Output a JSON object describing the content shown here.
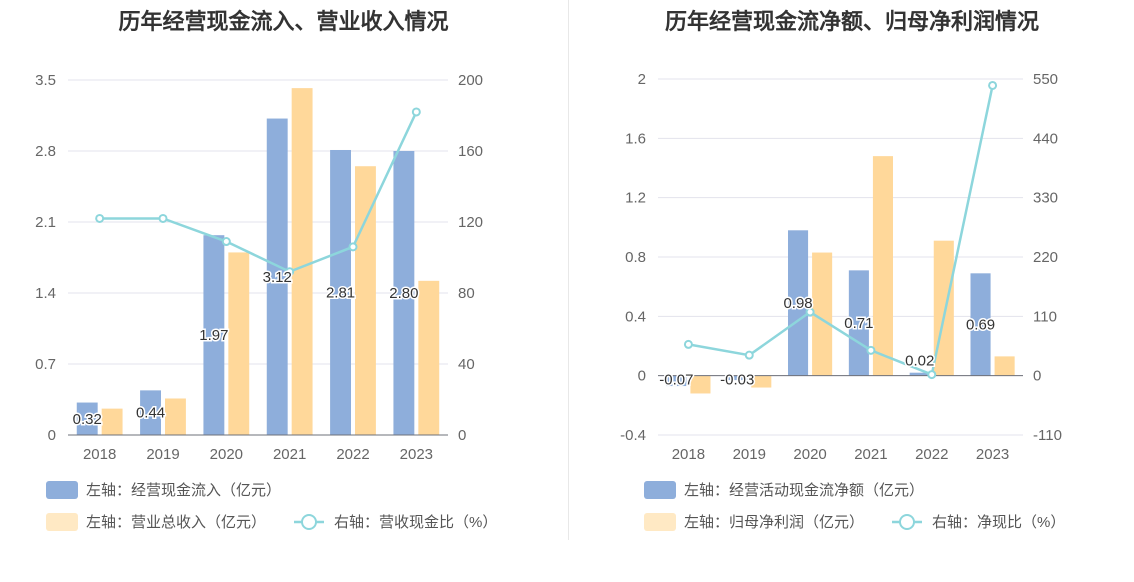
{
  "colors": {
    "bar1": "#8eaedb",
    "bar2": "#ffd89a",
    "line": "#8dd6dc",
    "grid": "#e3e3ec",
    "legend_bar2": "#ffe9c4"
  },
  "chart_data": [
    {
      "type": "bar",
      "title": "历年经营现金流入、营业收入情况",
      "categories": [
        "2018",
        "2019",
        "2020",
        "2021",
        "2022",
        "2023"
      ],
      "y_left": {
        "ticks": [
          "0",
          "0.7",
          "1.4",
          "2.1",
          "2.8",
          "3.5"
        ],
        "range": [
          0,
          3.5
        ]
      },
      "y_right": {
        "ticks": [
          "0",
          "40",
          "80",
          "120",
          "160",
          "200"
        ],
        "range": [
          0,
          200
        ]
      },
      "series": [
        {
          "name": "左轴：经营现金流入（亿元）",
          "kind": "bar",
          "axis": "left",
          "values": [
            0.32,
            0.44,
            1.97,
            3.12,
            2.81,
            2.8
          ],
          "labels": [
            "0.32",
            "0.44",
            "1.97",
            "3.12",
            "2.81",
            "2.80"
          ]
        },
        {
          "name": "左轴：营业总收入（亿元）",
          "kind": "bar",
          "axis": "left",
          "values": [
            0.26,
            0.36,
            1.8,
            3.42,
            2.65,
            1.52
          ]
        },
        {
          "name": "右轴：营收现金比（%）",
          "kind": "line",
          "axis": "right",
          "values": [
            122,
            122,
            109,
            92,
            106,
            182
          ]
        }
      ]
    },
    {
      "type": "bar",
      "title": "历年经营现金流净额、归母净利润情况",
      "categories": [
        "2018",
        "2019",
        "2020",
        "2021",
        "2022",
        "2023"
      ],
      "y_left": {
        "ticks": [
          "-0.4",
          "0",
          "0.4",
          "0.8",
          "1.2",
          "1.6",
          "2"
        ],
        "range": [
          -0.4,
          2
        ]
      },
      "y_right": {
        "ticks": [
          "-110",
          "0",
          "110",
          "220",
          "330",
          "440",
          "550"
        ],
        "range": [
          -110,
          550
        ]
      },
      "series": [
        {
          "name": "左轴：经营活动现金流净额（亿元）",
          "kind": "bar",
          "axis": "left",
          "values": [
            -0.07,
            -0.03,
            0.98,
            0.71,
            0.02,
            0.69
          ],
          "labels": [
            "-0.07",
            "-0.03",
            "0.98",
            "0.71",
            "0.02",
            "0.69"
          ]
        },
        {
          "name": "左轴：归母净利润（亿元）",
          "kind": "bar",
          "axis": "left",
          "values": [
            -0.12,
            -0.08,
            0.83,
            1.48,
            0.91,
            0.13
          ]
        },
        {
          "name": "右轴：净现比（%）",
          "kind": "line",
          "axis": "right",
          "values": [
            58,
            38,
            118,
            47,
            2,
            538
          ]
        }
      ]
    }
  ]
}
